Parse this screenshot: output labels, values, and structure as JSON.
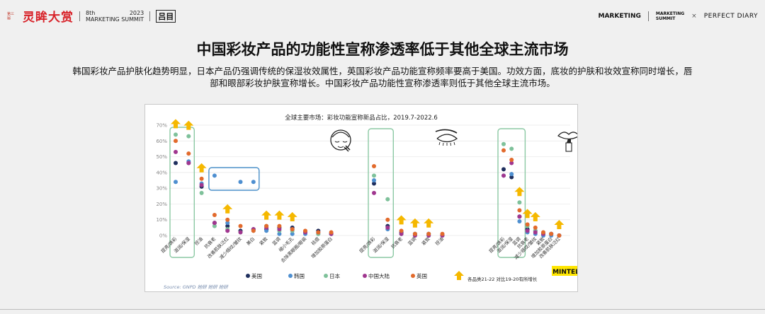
{
  "header": {
    "brand_mark": "第三届",
    "brand_title": "灵眸大赏",
    "summit_edition": "8th",
    "summit_year": "2023",
    "summit_name": "MARKETING SUMMIT",
    "summit_logo": "吕目",
    "right_brand1": "MARKETING",
    "right_brand2_line1": "MARKETING",
    "right_brand2_line2": "SUMMIT",
    "cross": "×",
    "right_brand3": "PERFECT DIARY"
  },
  "slide": {
    "title": "中国彩妆产品的功能性宣称渗透率低于其他全球主流市场",
    "description": "韩国彩妆产品护肤化趋势明显，日本产品仍强调传统的保湿妆效属性，英国彩妆产品功能宣称频率要高于美国。功效方面，底妆的护肤和妆效宣称同时增长，唇部和眼部彩妆护肤宣称增长。中国彩妆产品功能性宣称渗透率则低于其他全球主流市场。"
  },
  "chart_data": {
    "type": "scatter",
    "title": "全球主要市场：彩妆功能宣称新品占比，2019.7-2022.6",
    "ylim": [
      0,
      70
    ],
    "yticks": [
      "0%",
      "10%",
      "20%",
      "30%",
      "40%",
      "50%",
      "60%",
      "70%"
    ],
    "source": "Source: GNPD 她研 她研 她研",
    "brand_badge": "MINTEL",
    "arrow_legend": "各品类21-22 对比19-20有所增长",
    "accent_colors": {
      "highlight_green": "#8cc9a4",
      "highlight_blue": "#4a8fc8",
      "arrow": "#f5b800",
      "badge": "#ffe600"
    },
    "series": [
      {
        "name": "美国",
        "color": "#1f2f5e"
      },
      {
        "name": "韩国",
        "color": "#4e8fd0"
      },
      {
        "name": "日本",
        "color": "#7ec19a"
      },
      {
        "name": "中国大陆",
        "color": "#a0368f"
      },
      {
        "name": "英国",
        "color": "#e26a2c"
      }
    ],
    "panels": [
      {
        "icon": "face-icon",
        "categories": [
          {
            "label": "提亮/焕彩",
            "values": [
              46,
              34,
              64,
              53,
              60
            ],
            "arrow": true
          },
          {
            "label": "滋润/保湿",
            "values": [
              46,
              47,
              63,
              46,
              52
            ],
            "arrow": true
          },
          {
            "label": "控油",
            "values": [
              31,
              33,
              27,
              32,
              36
            ],
            "arrow": true
          },
          {
            "label": "抗衰老",
            "values": [
              8,
              38,
              6,
              8,
              13
            ],
            "arrow": false
          },
          {
            "label": "改善肌肤泛红",
            "values": [
              6,
              8,
              4,
              3,
              10
            ],
            "arrow": true
          },
          {
            "label": "减少细纹/皱纹",
            "values": [
              3,
              34,
              2,
              2,
              6
            ],
            "arrow": false
          },
          {
            "label": "美白",
            "values": [
              4,
              34,
              3,
              4,
              3
            ],
            "arrow": false
          },
          {
            "label": "紧致",
            "values": [
              4,
              3,
              6,
              5,
              6
            ],
            "arrow": true
          },
          {
            "label": "蓝调",
            "values": [
              5,
              1,
              3,
              4,
              6
            ],
            "arrow": true
          },
          {
            "label": "缩小毛孔",
            "values": [
              5,
              1,
              3,
              4,
              4
            ],
            "arrow": true
          },
          {
            "label": "去除黑眼圈/眼袋",
            "values": [
              2,
              1,
              2,
              2,
              3
            ],
            "arrow": false
          },
          {
            "label": "祛痘",
            "values": [
              3,
              1,
              1,
              2,
              2
            ],
            "arrow": false
          },
          {
            "label": "增加胶原蛋白",
            "values": [
              1,
              1,
              1,
              1,
              2
            ],
            "arrow": false
          }
        ]
      },
      {
        "icon": "eye-icon",
        "categories": [
          {
            "label": "提亮/焕彩",
            "values": [
              33,
              35,
              38,
              27,
              44
            ],
            "arrow": false
          },
          {
            "label": "滋润/保湿",
            "values": [
              6,
              4,
              23,
              5,
              10
            ],
            "arrow": false
          },
          {
            "label": "抗衰老",
            "values": [
              2,
              1,
              1,
              1,
              3
            ],
            "arrow": true
          },
          {
            "label": "蓝调",
            "values": [
              1,
              0,
              1,
              0,
              1
            ],
            "arrow": true
          },
          {
            "label": "紧致",
            "values": [
              1,
              0,
              1,
              0,
              1
            ],
            "arrow": true
          },
          {
            "label": "控油",
            "values": [
              0,
              0,
              0,
              0,
              1
            ],
            "arrow": false
          }
        ]
      },
      {
        "icon": "lips-icon",
        "categories": [
          {
            "label": "提亮/焕彩",
            "values": [
              42,
              38,
              58,
              38,
              54
            ],
            "arrow": false
          },
          {
            "label": "滋润/保湿",
            "values": [
              37,
              39,
              55,
              46,
              48
            ],
            "arrow": false
          },
          {
            "label": "蓝调",
            "values": [
              12,
              9,
              21,
              12,
              16
            ],
            "arrow": true
          },
          {
            "label": "抗衰老",
            "values": [
              4,
              2,
              6,
              3,
              7
            ],
            "arrow": true
          },
          {
            "label": "减少细纹/皱纹",
            "values": [
              3,
              1,
              3,
              2,
              5
            ],
            "arrow": true
          },
          {
            "label": "紧致",
            "values": [
              1,
              0,
              1,
              1,
              2
            ],
            "arrow": false
          },
          {
            "label": "增加胶原蛋白",
            "values": [
              1,
              0,
              1,
              1,
              1
            ],
            "arrow": false
          },
          {
            "label": "改善肌肤泛红",
            "values": [
              0,
              0,
              0,
              0,
              0
            ],
            "arrow": true
          }
        ]
      }
    ]
  }
}
